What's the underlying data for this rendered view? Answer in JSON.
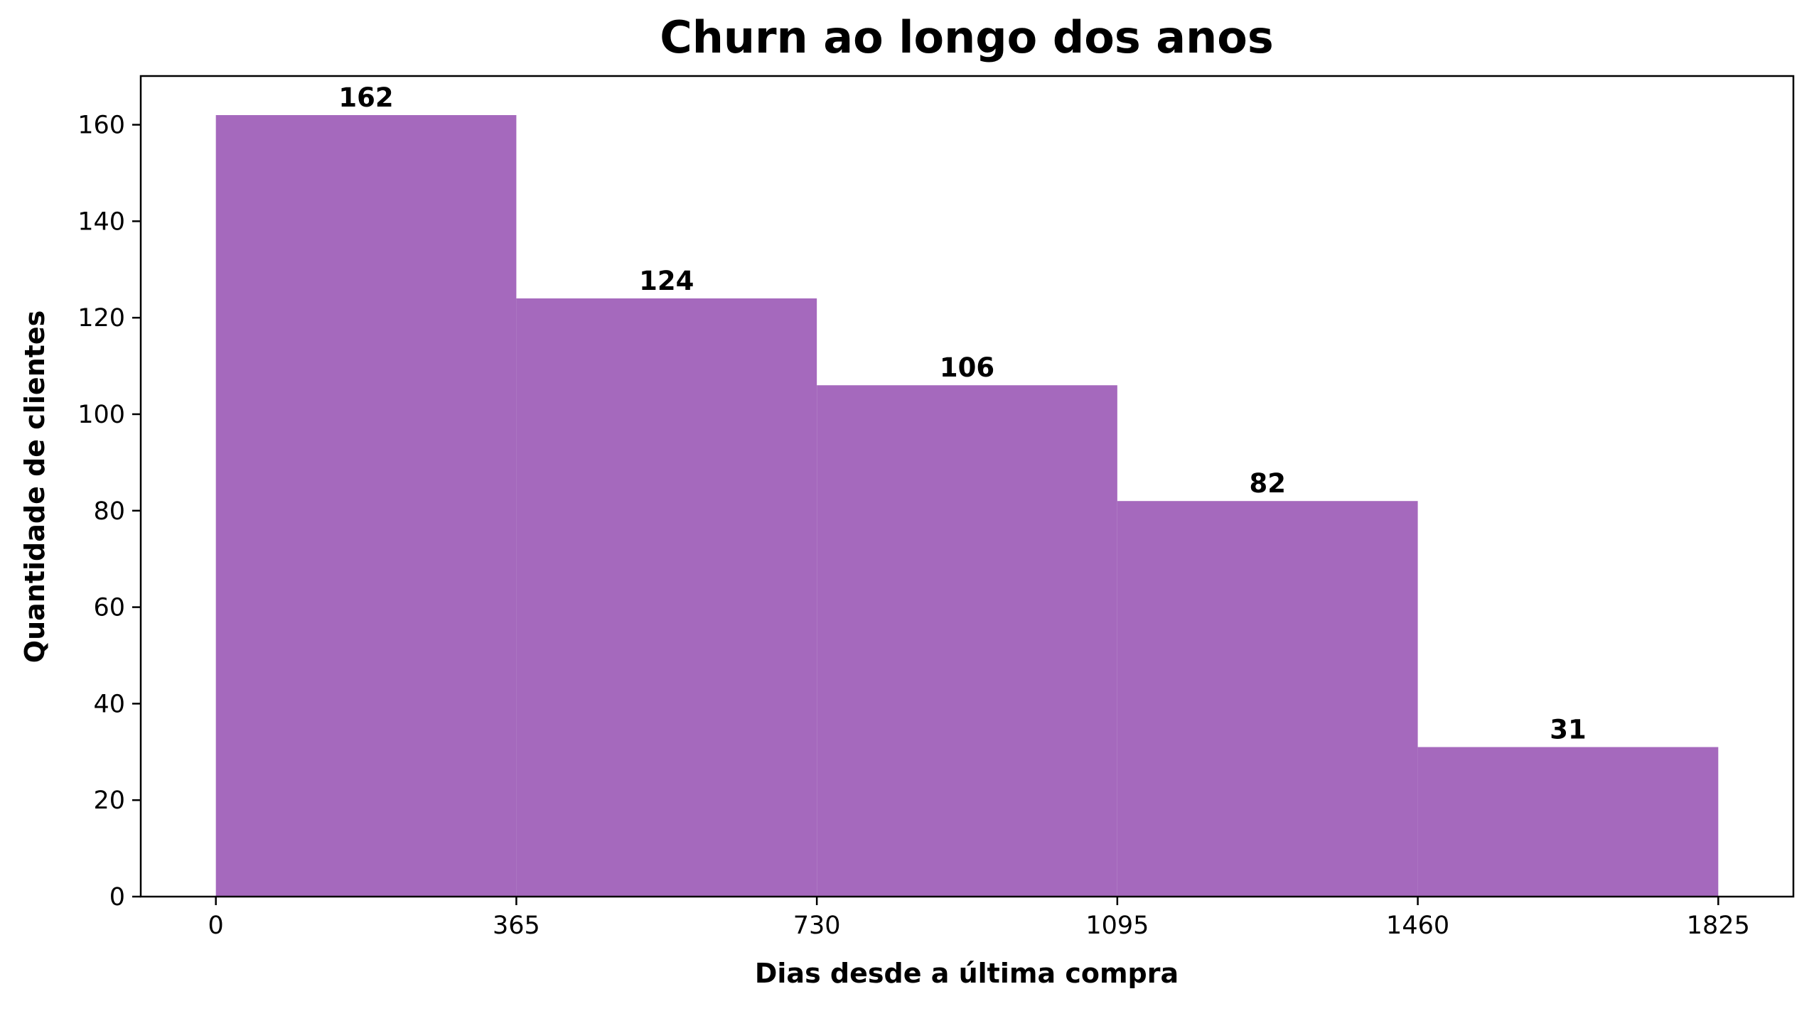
{
  "chart_data": {
    "type": "bar",
    "title": "Churn ao longo dos anos",
    "xlabel": "Dias desde a última compra",
    "ylabel": "Quantidade de clientes",
    "bins": [
      {
        "start": 0,
        "end": 365,
        "value": 162
      },
      {
        "start": 365,
        "end": 730,
        "value": 124
      },
      {
        "start": 730,
        "end": 1095,
        "value": 106
      },
      {
        "start": 1095,
        "end": 1460,
        "value": 82
      },
      {
        "start": 1460,
        "end": 1825,
        "value": 31
      }
    ],
    "xticks": [
      0,
      365,
      730,
      1095,
      1460,
      1825
    ],
    "yticks": [
      0,
      20,
      40,
      60,
      80,
      100,
      120,
      140,
      160
    ],
    "xlim": [
      -91.25,
      1916.25
    ],
    "ylim": [
      0,
      170.1
    ],
    "bar_color": "#a569bd",
    "grid": false,
    "legend": "none"
  }
}
